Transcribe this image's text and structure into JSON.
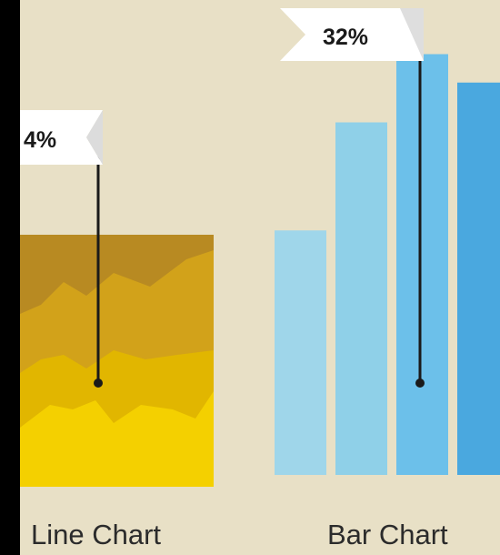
{
  "chart_data": [
    {
      "type": "area",
      "title": "Line Chart",
      "callout": "4%",
      "layer_colors": [
        "#f4d000",
        "#e1b600",
        "#d2a21a",
        "#b88a22"
      ]
    },
    {
      "type": "bar",
      "title": "Bar Chart",
      "callout": "32%",
      "values": [
        43,
        62,
        74,
        69
      ],
      "ylim": [
        0,
        80
      ],
      "bar_colors": [
        "#9fd6ea",
        "#8fd0e8",
        "#6cc0ea",
        "#4aa8df"
      ]
    }
  ],
  "colors": {
    "background": "#e8e0c6",
    "flag": "#ffffff",
    "pin": "#1a1a1a"
  }
}
